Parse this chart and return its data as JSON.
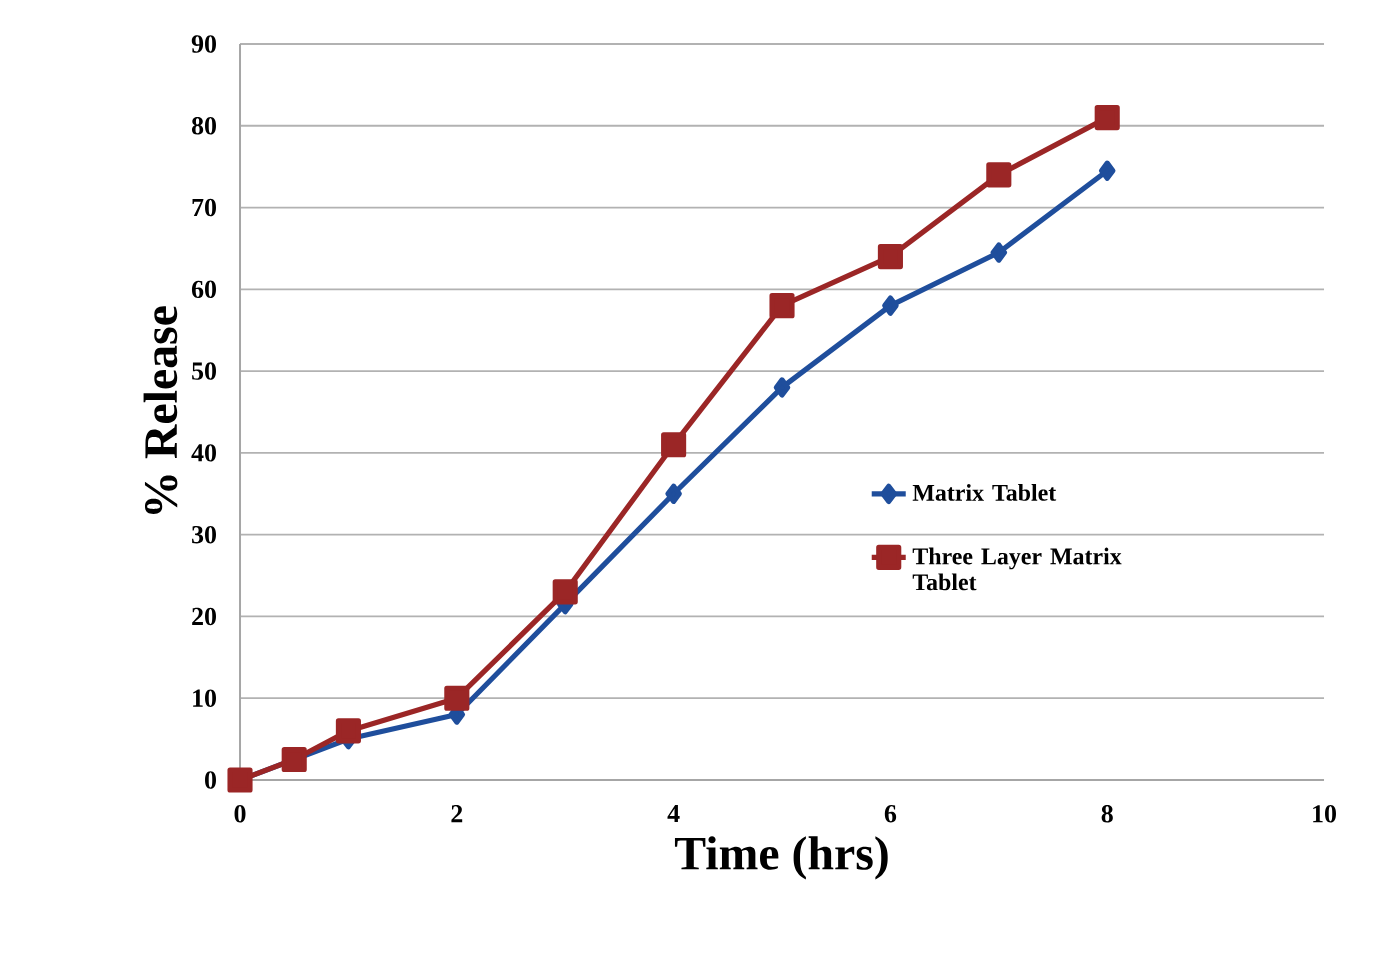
{
  "chart_data": {
    "type": "line",
    "xlabel": "Time  (hrs)",
    "ylabel": "% Release",
    "xlim": [
      0,
      10
    ],
    "ylim": [
      0,
      90
    ],
    "xticks": [
      0,
      2,
      4,
      6,
      8,
      10
    ],
    "yticks": [
      0,
      10,
      20,
      30,
      40,
      50,
      60,
      70,
      80,
      90
    ],
    "grid": "y",
    "legend": "right",
    "x": [
      0,
      0.5,
      1,
      2,
      3,
      4,
      5,
      6,
      7,
      8
    ],
    "series": [
      {
        "name": "Matrix Tablet",
        "color": "#1f4e9c",
        "marker": "diamond",
        "values": [
          0,
          2.5,
          5,
          8,
          21.5,
          35,
          48,
          58,
          64.5,
          74.5
        ]
      },
      {
        "name": "Three Layer Matrix Tablet",
        "color": "#9b2626",
        "marker": "square",
        "values": [
          0,
          2.5,
          6,
          10,
          23,
          41,
          58,
          64,
          74,
          81
        ]
      }
    ]
  }
}
